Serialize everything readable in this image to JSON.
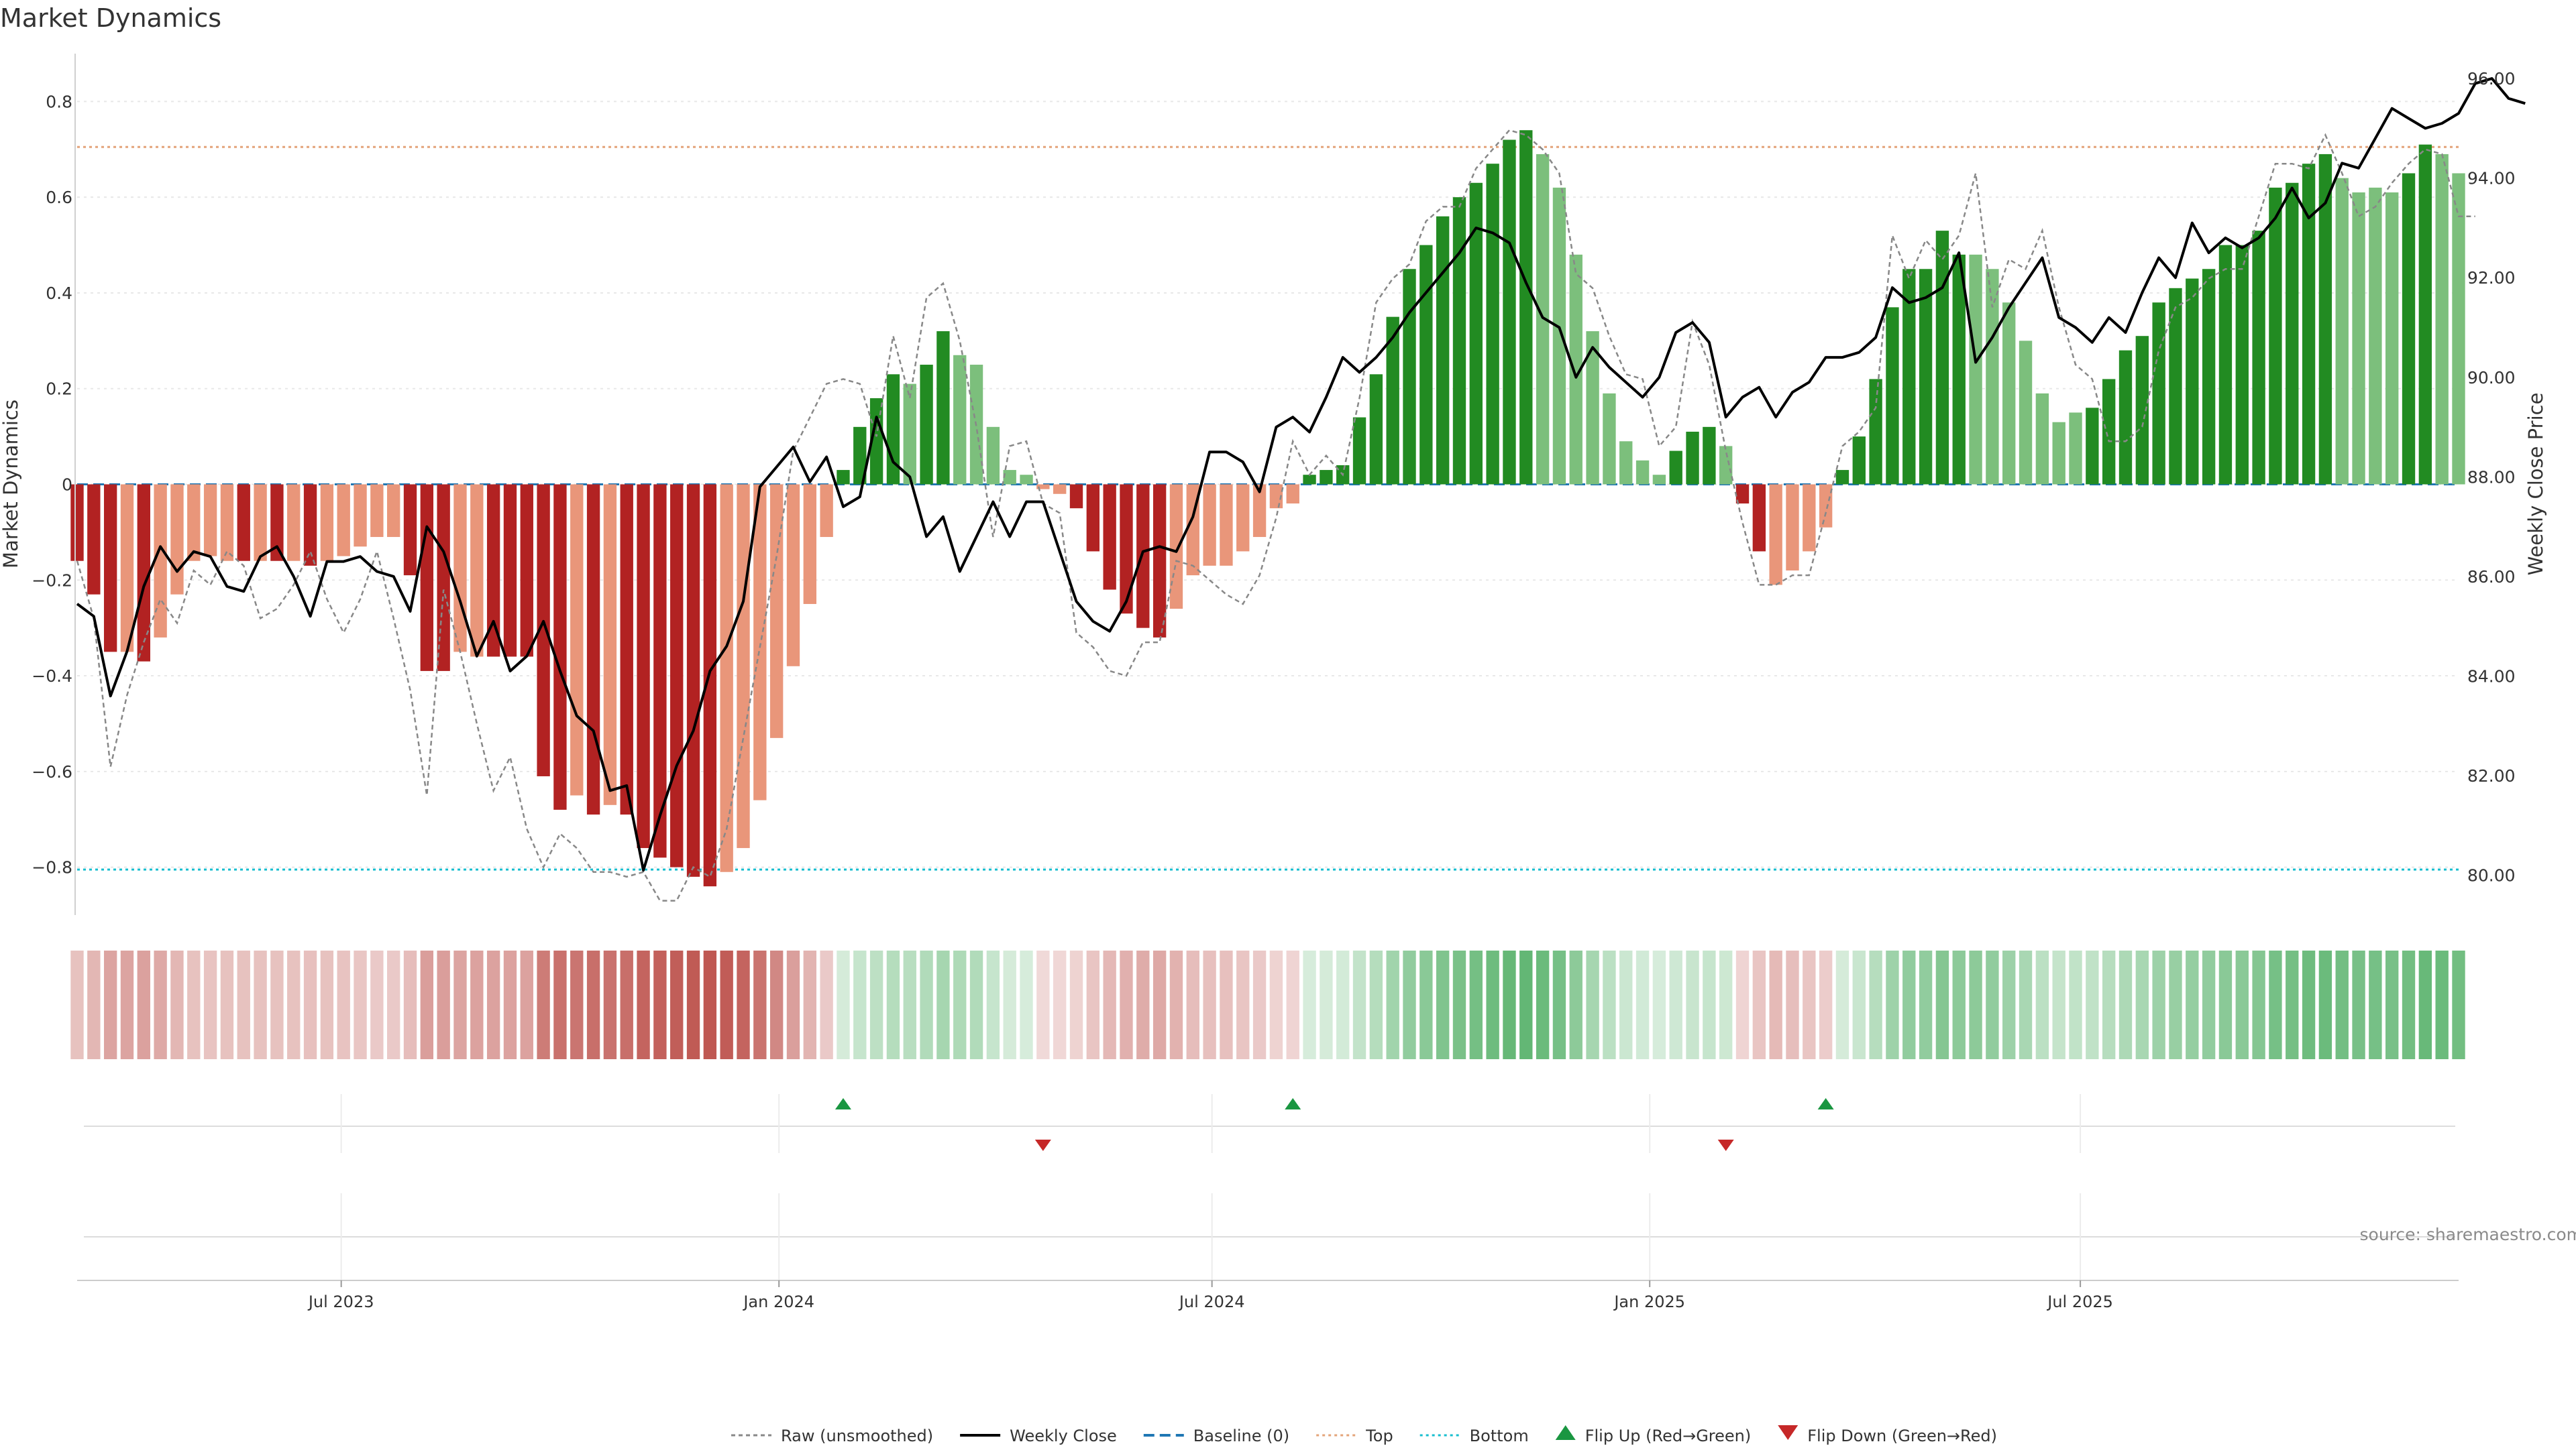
{
  "title": "Market Dynamics",
  "source_note": "source: sharemaestro.com",
  "colors": {
    "strong_red": "#b22222",
    "weak_red": "#e9967a",
    "strong_green": "#228b22",
    "weak_green": "#7cbf7c",
    "close_line": "#000000",
    "raw_line": "#888888",
    "baseline": "#1f77b4",
    "top_line": "#e4a47a",
    "bottom_line": "#17becf",
    "flip_up": "#1a9641",
    "flip_down": "#c62828"
  },
  "chart_data": {
    "type": "bar",
    "x_start": "2023-03-12",
    "interval": "weekly",
    "left_axis": {
      "label": "Market Dynamics",
      "lim": [
        -0.9,
        0.9
      ],
      "ticks": [
        0.8,
        0.6,
        0.4,
        0.2,
        0,
        -0.2,
        -0.4,
        -0.6,
        -0.8
      ],
      "tick_labels": [
        "0.8",
        "0.6",
        "0.4",
        "0.2",
        "0",
        "−0.2",
        "−0.4",
        "−0.6",
        "−0.8"
      ]
    },
    "right_axis": {
      "label": "Weekly Close Price",
      "lim": [
        79.2,
        96.5
      ],
      "ticks": [
        96,
        94,
        92,
        90,
        88,
        86,
        84,
        82,
        80
      ],
      "tick_labels": [
        "96.00",
        "94.00",
        "92.00",
        "90.00",
        "88.00",
        "86.00",
        "84.00",
        "82.00",
        "80.00"
      ]
    },
    "x_axis": {
      "tick_labels": [
        "Jul 2023",
        "Jan 2024",
        "Jul 2024",
        "Jan 2025",
        "Jul 2025"
      ],
      "tick_dates": [
        "2023-07-01",
        "2024-01-01",
        "2024-07-01",
        "2025-01-01",
        "2025-07-01"
      ]
    },
    "top_level": 0.705,
    "bottom_level": -0.805,
    "momentum": [
      -0.16,
      -0.23,
      -0.35,
      -0.35,
      -0.37,
      -0.32,
      -0.23,
      -0.16,
      -0.15,
      -0.16,
      -0.16,
      -0.16,
      -0.16,
      -0.16,
      -0.17,
      -0.16,
      -0.15,
      -0.13,
      -0.11,
      -0.11,
      -0.19,
      -0.39,
      -0.39,
      -0.35,
      -0.36,
      -0.36,
      -0.36,
      -0.36,
      -0.61,
      -0.68,
      -0.65,
      -0.69,
      -0.67,
      -0.69,
      -0.76,
      -0.78,
      -0.8,
      -0.82,
      -0.84,
      -0.81,
      -0.76,
      -0.66,
      -0.53,
      -0.38,
      -0.25,
      -0.11,
      0.03,
      0.12,
      0.18,
      0.23,
      0.21,
      0.25,
      0.32,
      0.27,
      0.25,
      0.12,
      0.03,
      0.02,
      -0.01,
      -0.02,
      -0.05,
      -0.14,
      -0.22,
      -0.27,
      -0.3,
      -0.32,
      -0.26,
      -0.19,
      -0.17,
      -0.17,
      -0.14,
      -0.11,
      -0.05,
      -0.04,
      0.02,
      0.03,
      0.04,
      0.14,
      0.23,
      0.35,
      0.45,
      0.5,
      0.56,
      0.6,
      0.63,
      0.67,
      0.72,
      0.74,
      0.69,
      0.62,
      0.48,
      0.32,
      0.19,
      0.09,
      0.05,
      0.02,
      0.07,
      0.11,
      0.12,
      0.08,
      -0.04,
      -0.14,
      -0.21,
      -0.18,
      -0.14,
      -0.09,
      0.03,
      0.1,
      0.22,
      0.37,
      0.45,
      0.45,
      0.53,
      0.48,
      0.48,
      0.45,
      0.38,
      0.3,
      0.19,
      0.13,
      0.15,
      0.16,
      0.22,
      0.28,
      0.31,
      0.38,
      0.41,
      0.43,
      0.45,
      0.5,
      0.5,
      0.53,
      0.62,
      0.63,
      0.67,
      0.69,
      0.64,
      0.61,
      0.62,
      0.61,
      0.65,
      0.71,
      0.69,
      0.65
    ],
    "momentum_strength": [
      "S",
      "S",
      "S",
      "W",
      "S",
      "W",
      "W",
      "W",
      "W",
      "W",
      "S",
      "W",
      "S",
      "W",
      "S",
      "W",
      "W",
      "W",
      "W",
      "W",
      "S",
      "S",
      "S",
      "W",
      "W",
      "S",
      "S",
      "S",
      "S",
      "S",
      "W",
      "S",
      "W",
      "S",
      "S",
      "S",
      "S",
      "S",
      "S",
      "W",
      "W",
      "W",
      "W",
      "W",
      "W",
      "W",
      "S",
      "S",
      "S",
      "S",
      "W",
      "S",
      "S",
      "W",
      "W",
      "W",
      "W",
      "W",
      "W",
      "W",
      "S",
      "S",
      "S",
      "S",
      "S",
      "S",
      "W",
      "W",
      "W",
      "W",
      "W",
      "W",
      "W",
      "W",
      "S",
      "S",
      "S",
      "S",
      "S",
      "S",
      "S",
      "S",
      "S",
      "S",
      "S",
      "S",
      "S",
      "S",
      "W",
      "W",
      "W",
      "W",
      "W",
      "W",
      "W",
      "W",
      "S",
      "S",
      "S",
      "W",
      "S",
      "S",
      "W",
      "W",
      "W",
      "W",
      "S",
      "S",
      "S",
      "S",
      "S",
      "S",
      "S",
      "S",
      "W",
      "W",
      "W",
      "W",
      "W",
      "W",
      "W",
      "S",
      "S",
      "S",
      "S",
      "S",
      "S",
      "S",
      "S",
      "S",
      "S",
      "S",
      "S",
      "S",
      "S",
      "S",
      "W",
      "W",
      "W",
      "W",
      "S",
      "S",
      "W",
      "W"
    ],
    "weekly_close": [
      85.45,
      85.2,
      83.6,
      84.5,
      85.8,
      86.6,
      86.1,
      86.5,
      86.4,
      85.8,
      85.7,
      86.4,
      86.6,
      86.0,
      85.2,
      86.3,
      86.3,
      86.4,
      86.1,
      86.0,
      85.3,
      87.0,
      86.5,
      85.5,
      84.4,
      85.1,
      84.1,
      84.4,
      85.1,
      84.1,
      83.2,
      82.9,
      81.7,
      81.8,
      80.1,
      81.2,
      82.2,
      82.9,
      84.1,
      84.6,
      85.5,
      87.8,
      88.2,
      88.6,
      87.9,
      88.4,
      87.4,
      87.6,
      89.2,
      88.3,
      88.0,
      86.8,
      87.2,
      86.1,
      86.8,
      87.5,
      86.8,
      87.5,
      87.5,
      86.5,
      85.5,
      85.1,
      84.9,
      85.5,
      86.5,
      86.6,
      86.5,
      87.2,
      88.5,
      88.5,
      88.3,
      87.7,
      89.0,
      89.2,
      88.9,
      89.6,
      90.4,
      90.1,
      90.4,
      90.8,
      91.3,
      91.7,
      92.1,
      92.5,
      93.0,
      92.9,
      92.7,
      91.9,
      91.2,
      91.0,
      90.0,
      90.6,
      90.2,
      89.9,
      89.6,
      90.0,
      90.9,
      91.1,
      90.7,
      89.2,
      89.6,
      89.8,
      89.2,
      89.7,
      89.9,
      90.4,
      90.4,
      90.5,
      90.8,
      91.8,
      91.5,
      91.6,
      91.8,
      92.5,
      90.3,
      90.8,
      91.4,
      91.9,
      92.4,
      91.2,
      91.0,
      90.7,
      91.2,
      90.9,
      91.7,
      92.4,
      92.0,
      93.1,
      92.5,
      92.8,
      92.6,
      92.8,
      93.2,
      93.8,
      93.2,
      93.5,
      94.3,
      94.2,
      94.8,
      95.4,
      95.2,
      95.0,
      95.1,
      95.3,
      95.9,
      96.0,
      95.6,
      95.5
    ],
    "raw_momentum": [
      -0.16,
      -0.28,
      -0.59,
      -0.44,
      -0.33,
      -0.24,
      -0.29,
      -0.18,
      -0.21,
      -0.14,
      -0.17,
      -0.28,
      -0.26,
      -0.21,
      -0.14,
      -0.24,
      -0.31,
      -0.24,
      -0.14,
      -0.28,
      -0.43,
      -0.65,
      -0.22,
      -0.35,
      -0.5,
      -0.64,
      -0.57,
      -0.72,
      -0.8,
      -0.73,
      -0.76,
      -0.81,
      -0.81,
      -0.82,
      -0.81,
      -0.87,
      -0.87,
      -0.8,
      -0.82,
      -0.72,
      -0.53,
      -0.34,
      -0.15,
      0.07,
      0.14,
      0.21,
      0.22,
      0.21,
      0.1,
      0.31,
      0.18,
      0.39,
      0.42,
      0.3,
      0.12,
      -0.11,
      0.08,
      0.09,
      -0.04,
      -0.06,
      -0.31,
      -0.34,
      -0.39,
      -0.4,
      -0.33,
      -0.33,
      -0.16,
      -0.17,
      -0.2,
      -0.23,
      -0.25,
      -0.19,
      -0.07,
      0.09,
      0.02,
      0.06,
      0.02,
      0.18,
      0.38,
      0.43,
      0.46,
      0.55,
      0.58,
      0.58,
      0.66,
      0.7,
      0.74,
      0.73,
      0.7,
      0.65,
      0.44,
      0.41,
      0.31,
      0.23,
      0.22,
      0.08,
      0.12,
      0.34,
      0.25,
      0.07,
      -0.08,
      -0.21,
      -0.21,
      -0.19,
      -0.19,
      -0.06,
      0.08,
      0.11,
      0.16,
      0.52,
      0.43,
      0.51,
      0.47,
      0.52,
      0.65,
      0.37,
      0.47,
      0.45,
      0.53,
      0.37,
      0.25,
      0.22,
      0.09,
      0.09,
      0.12,
      0.28,
      0.37,
      0.39,
      0.43,
      0.45,
      0.45,
      0.56,
      0.67,
      0.67,
      0.66,
      0.73,
      0.65,
      0.56,
      0.58,
      0.63,
      0.67,
      0.7,
      0.69,
      0.56,
      0.56
    ],
    "flip_events": [
      {
        "index": 46,
        "direction": "up"
      },
      {
        "index": 58,
        "direction": "down"
      },
      {
        "index": 73,
        "direction": "up"
      },
      {
        "index": 99,
        "direction": "down"
      },
      {
        "index": 105,
        "direction": "up"
      }
    ],
    "legend_placement": "bottom-center",
    "legend": [
      {
        "label": "Raw (unsmoothed)",
        "kind": "dashed-gray"
      },
      {
        "label": "Weekly Close",
        "kind": "solid-black"
      },
      {
        "label": "Baseline (0)",
        "kind": "dashed-blue"
      },
      {
        "label": "Top",
        "kind": "dotted-orange"
      },
      {
        "label": "Bottom",
        "kind": "dotted-cyan"
      },
      {
        "label": "Flip Up (Red→Green)",
        "kind": "tri-up"
      },
      {
        "label": "Flip Down (Green→Red)",
        "kind": "tri-down"
      }
    ]
  }
}
